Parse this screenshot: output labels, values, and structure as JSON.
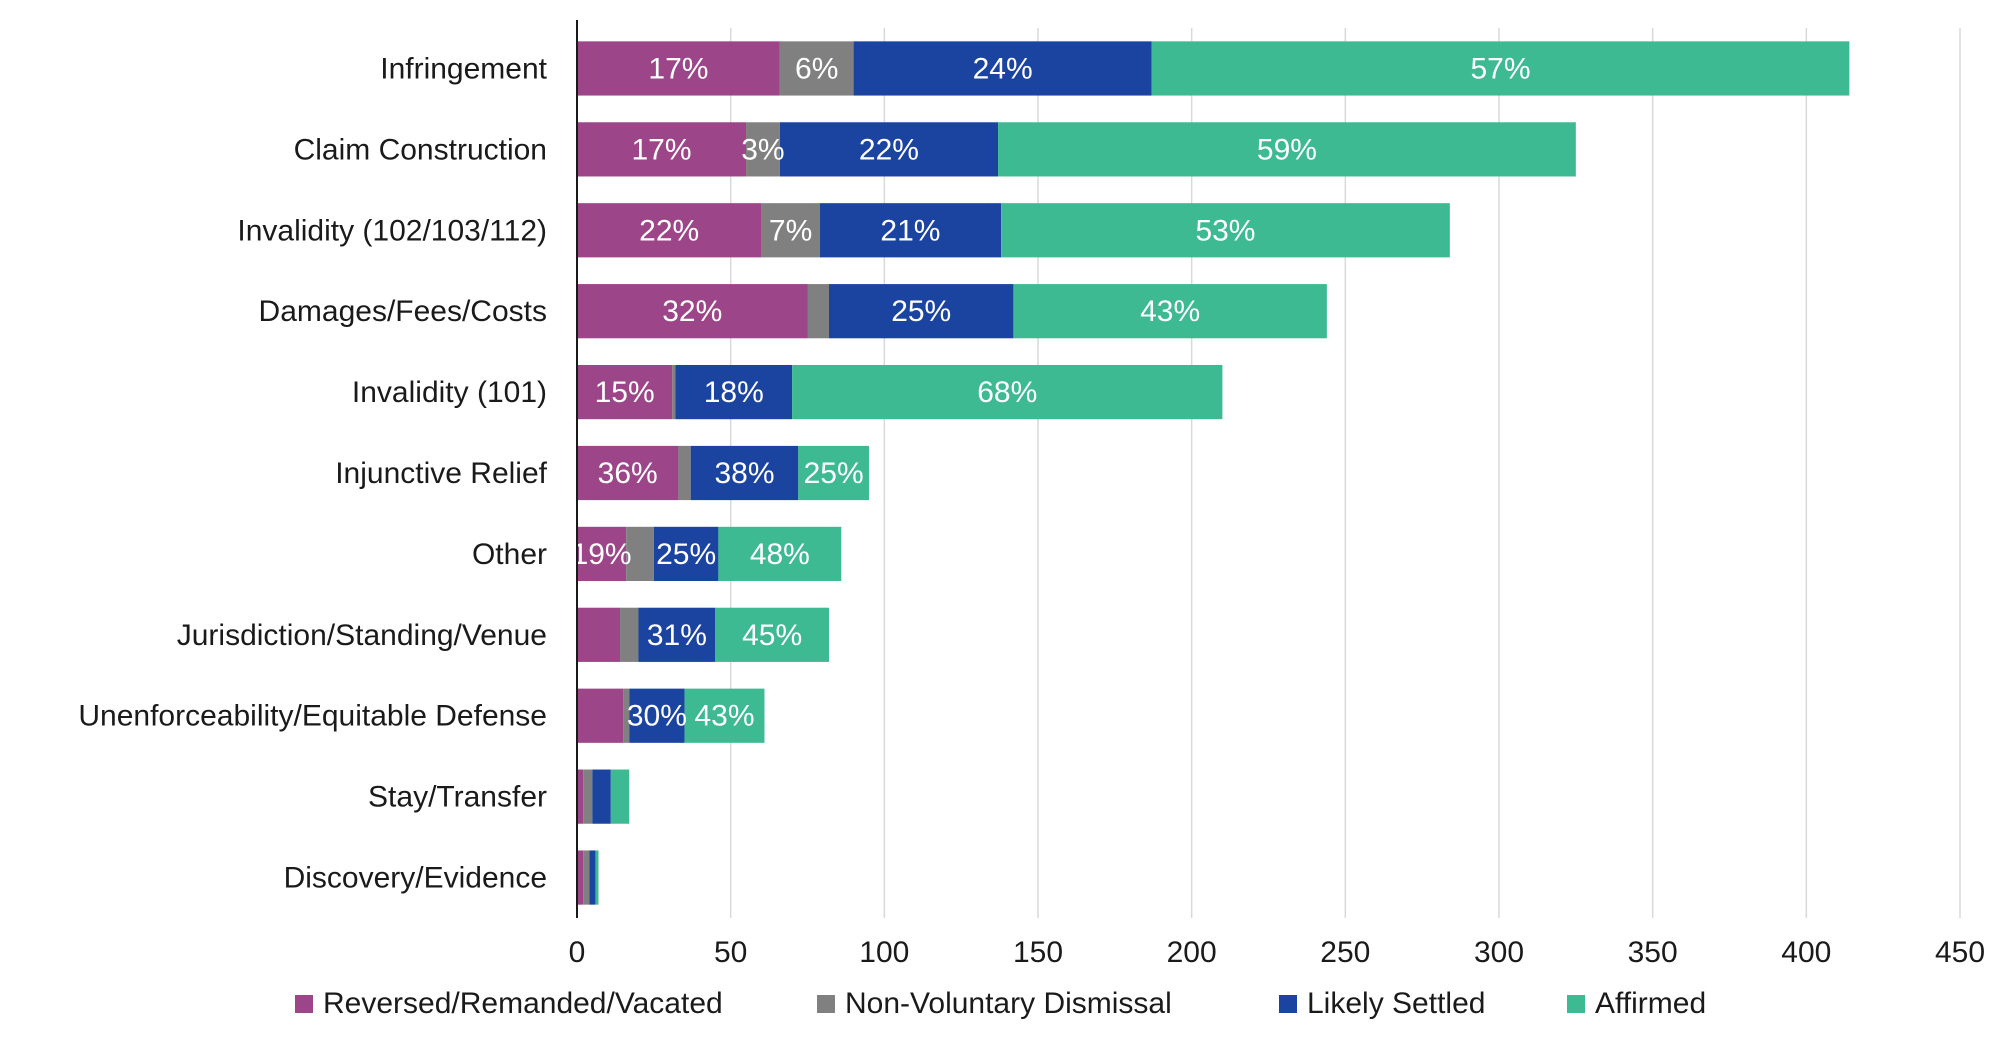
{
  "chart_data": {
    "type": "bar",
    "orientation": "horizontal",
    "stacked": true,
    "categories": [
      "Infringement",
      "Claim Construction",
      "Invalidity (102/103/112)",
      "Damages/Fees/Costs",
      "Invalidity (101)",
      "Injunctive Relief",
      "Other",
      "Jurisdiction/Standing/Venue",
      "Unenforceability/Equitable Defense",
      "Stay/Transfer",
      "Discovery/Evidence"
    ],
    "series": [
      {
        "name": "Reversed/Remanded/Vacated",
        "color": "#9c4589",
        "values": [
          66,
          55,
          60,
          75,
          31,
          33,
          16,
          14,
          15,
          2,
          2
        ],
        "labels": [
          "17%",
          "17%",
          "22%",
          "32%",
          "15%",
          "36%",
          "19%",
          "",
          "",
          "",
          ""
        ]
      },
      {
        "name": "Non-Voluntary Dismissal",
        "color": "#808080",
        "values": [
          24,
          11,
          19,
          7,
          1,
          4,
          9,
          6,
          2,
          3,
          2
        ],
        "labels": [
          "6%",
          "3%",
          "7%",
          "",
          "",
          "",
          "",
          "",
          "",
          "",
          ""
        ]
      },
      {
        "name": "Likely Settled",
        "color": "#1b43a0",
        "values": [
          97,
          71,
          59,
          60,
          38,
          35,
          21,
          25,
          18,
          6,
          2
        ],
        "labels": [
          "24%",
          "22%",
          "21%",
          "25%",
          "18%",
          "38%",
          "25%",
          "31%",
          "30%",
          "",
          ""
        ]
      },
      {
        "name": "Affirmed",
        "color": "#3dba91",
        "values": [
          227,
          188,
          146,
          102,
          140,
          23,
          40,
          37,
          26,
          6,
          1
        ],
        "labels": [
          "57%",
          "59%",
          "53%",
          "43%",
          "68%",
          "25%",
          "48%",
          "45%",
          "43%",
          "",
          ""
        ]
      }
    ],
    "xlim": [
      0,
      450
    ],
    "xticks": [
      "0",
      "50",
      "100",
      "150",
      "200",
      "250",
      "300",
      "350",
      "400",
      "450"
    ],
    "grid": "vertical",
    "legend_position": "bottom"
  }
}
